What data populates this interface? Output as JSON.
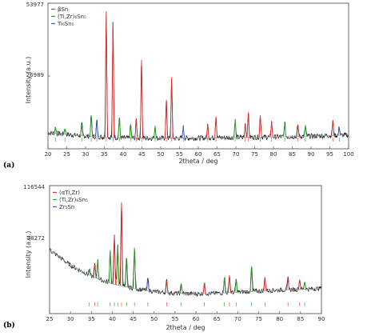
{
  "chart_data": [
    {
      "panel": "(a)",
      "type": "line",
      "xlabel": "2theta / deg",
      "ylabel": "Intensity (a.u.)",
      "xlim": [
        20,
        100
      ],
      "ylim": [
        0,
        53977
      ],
      "xticks": [
        20,
        25,
        30,
        35,
        40,
        45,
        50,
        55,
        60,
        65,
        70,
        75,
        80,
        85,
        90,
        95,
        100
      ],
      "yticks": [
        26989,
        53977
      ],
      "legend": [
        "βSn",
        "(Ti,Zr)₆Sn₅",
        "Ti₆Sn₅"
      ],
      "legend_colors": [
        "#e03030",
        "#2a9d2a",
        "#3a5fc8"
      ],
      "baseline": [
        [
          20,
          6000
        ],
        [
          30,
          4700
        ],
        [
          40,
          4000
        ],
        [
          50,
          3900
        ],
        [
          60,
          4000
        ],
        [
          70,
          4200
        ],
        [
          80,
          4400
        ],
        [
          90,
          4700
        ],
        [
          100,
          5100
        ]
      ],
      "peaks": [
        {
          "x": 22.0,
          "y": 8000,
          "phase": 1
        },
        {
          "x": 24.5,
          "y": 7500,
          "phase": 1
        },
        {
          "x": 29.0,
          "y": 9000,
          "phase": 1
        },
        {
          "x": 31.5,
          "y": 12500,
          "phase": 1
        },
        {
          "x": 33.0,
          "y": 10500,
          "phase": 2
        },
        {
          "x": 35.5,
          "y": 51000,
          "phase": 0
        },
        {
          "x": 37.3,
          "y": 47000,
          "phase": 0
        },
        {
          "x": 39.0,
          "y": 11500,
          "phase": 1
        },
        {
          "x": 42.0,
          "y": 9000,
          "phase": 1
        },
        {
          "x": 43.5,
          "y": 11000,
          "phase": 0
        },
        {
          "x": 44.9,
          "y": 33000,
          "phase": 0
        },
        {
          "x": 48.5,
          "y": 8500,
          "phase": 1
        },
        {
          "x": 51.5,
          "y": 18000,
          "phase": 0
        },
        {
          "x": 52.9,
          "y": 26500,
          "phase": 0
        },
        {
          "x": 56.0,
          "y": 8000,
          "phase": 2
        },
        {
          "x": 62.5,
          "y": 9000,
          "phase": 0
        },
        {
          "x": 64.7,
          "y": 12000,
          "phase": 0
        },
        {
          "x": 69.8,
          "y": 10500,
          "phase": 1
        },
        {
          "x": 72.5,
          "y": 9500,
          "phase": 0
        },
        {
          "x": 73.3,
          "y": 13500,
          "phase": 0
        },
        {
          "x": 76.5,
          "y": 12500,
          "phase": 0
        },
        {
          "x": 79.5,
          "y": 10000,
          "phase": 0
        },
        {
          "x": 83.0,
          "y": 9500,
          "phase": 1
        },
        {
          "x": 86.5,
          "y": 9000,
          "phase": 0
        },
        {
          "x": 88.5,
          "y": 8500,
          "phase": 1
        },
        {
          "x": 95.8,
          "y": 10500,
          "phase": 0
        },
        {
          "x": 97.5,
          "y": 8000,
          "phase": 2
        }
      ]
    },
    {
      "panel": "(b)",
      "type": "line",
      "xlabel": "2theta / deg",
      "ylabel": "Intensity (a.u.)",
      "xlim": [
        25,
        90
      ],
      "ylim": [
        0,
        116544
      ],
      "xticks": [
        25,
        30,
        35,
        40,
        45,
        50,
        55,
        60,
        65,
        70,
        75,
        80,
        85,
        90
      ],
      "yticks": [
        58272,
        116544
      ],
      "legend": [
        "(αTi,Zr)",
        "(Ti,Zr)₆Sn₅",
        "Zr₅Sn"
      ],
      "legend_colors": [
        "#e03030",
        "#2a9d2a",
        "#3a5fc8"
      ],
      "baseline": [
        [
          25,
          58000
        ],
        [
          30,
          44000
        ],
        [
          35,
          34000
        ],
        [
          40,
          27000
        ],
        [
          45,
          23000
        ],
        [
          50,
          20000
        ],
        [
          55,
          18500
        ],
        [
          60,
          18000
        ],
        [
          65,
          18500
        ],
        [
          70,
          19500
        ],
        [
          75,
          20500
        ],
        [
          80,
          21500
        ],
        [
          85,
          22000
        ],
        [
          90,
          23000
        ]
      ],
      "peaks": [
        {
          "x": 34.5,
          "y": 40000,
          "phase": 1
        },
        {
          "x": 35.8,
          "y": 45000,
          "phase": 0
        },
        {
          "x": 36.5,
          "y": 48000,
          "phase": 1
        },
        {
          "x": 39.5,
          "y": 58000,
          "phase": 1
        },
        {
          "x": 40.5,
          "y": 72000,
          "phase": 0
        },
        {
          "x": 41.3,
          "y": 62000,
          "phase": 1
        },
        {
          "x": 42.2,
          "y": 101000,
          "phase": 0
        },
        {
          "x": 43.4,
          "y": 50000,
          "phase": 1
        },
        {
          "x": 45.3,
          "y": 60000,
          "phase": 1
        },
        {
          "x": 48.5,
          "y": 32000,
          "phase": 2
        },
        {
          "x": 53.0,
          "y": 30000,
          "phase": 0
        },
        {
          "x": 56.5,
          "y": 27000,
          "phase": 1
        },
        {
          "x": 62.0,
          "y": 27000,
          "phase": 0
        },
        {
          "x": 66.8,
          "y": 33000,
          "phase": 1
        },
        {
          "x": 68.0,
          "y": 35000,
          "phase": 0
        },
        {
          "x": 69.6,
          "y": 31000,
          "phase": 1
        },
        {
          "x": 73.3,
          "y": 43000,
          "phase": 1
        },
        {
          "x": 76.5,
          "y": 33000,
          "phase": 0
        },
        {
          "x": 82.0,
          "y": 32000,
          "phase": 0
        },
        {
          "x": 84.8,
          "y": 31000,
          "phase": 0
        },
        {
          "x": 86.0,
          "y": 29000,
          "phase": 1
        }
      ]
    }
  ]
}
